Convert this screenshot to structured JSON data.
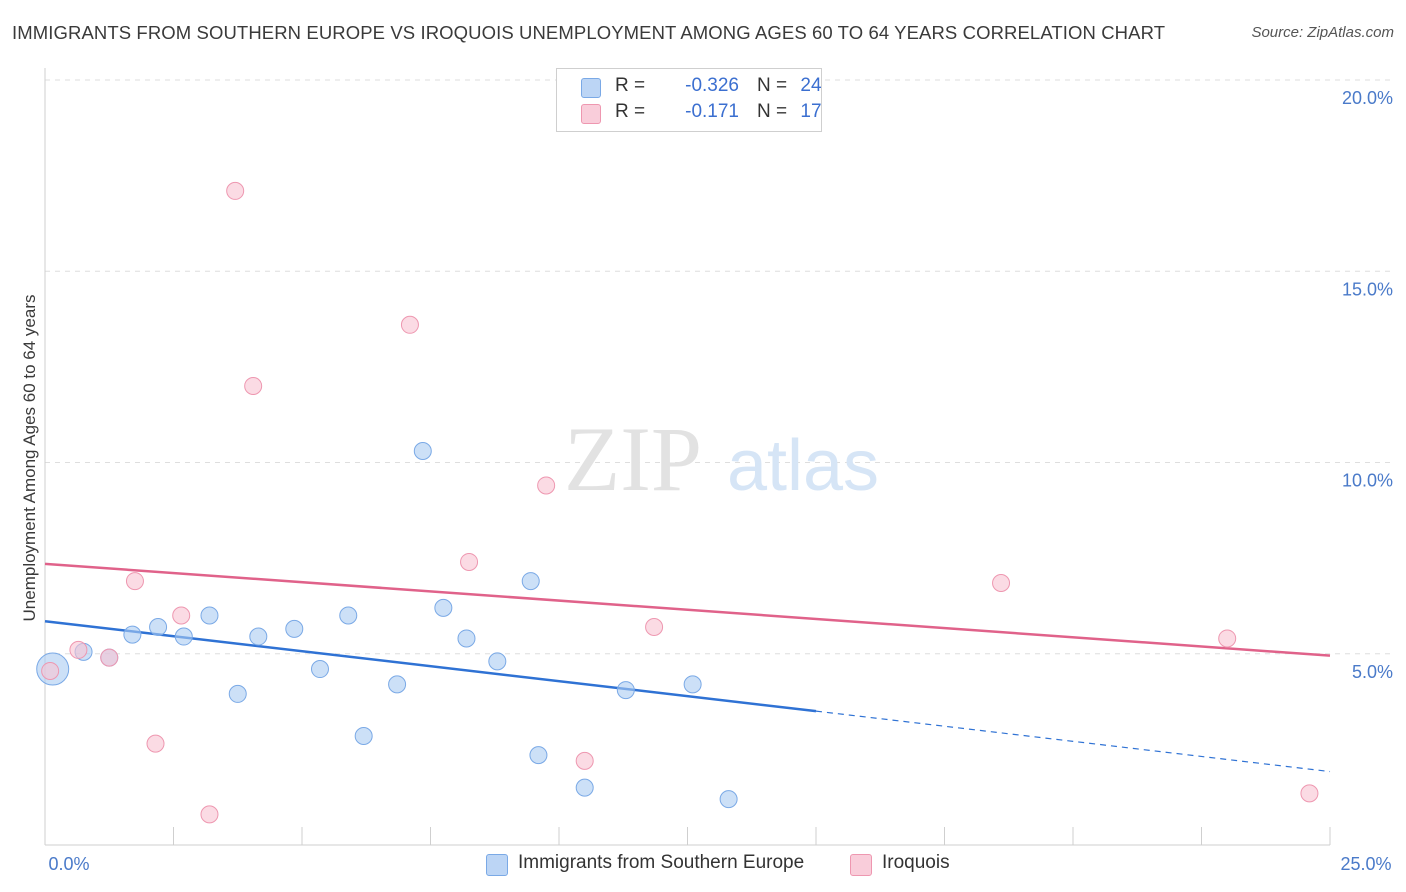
{
  "title": "IMMIGRANTS FROM SOUTHERN EUROPE VS IROQUOIS UNEMPLOYMENT AMONG AGES 60 TO 64 YEARS CORRELATION CHART",
  "source": "Source: ZipAtlas.com",
  "watermark": {
    "zip": "ZIP",
    "atlas": "atlas"
  },
  "legend": {
    "series": [
      {
        "r_label": "R =",
        "r_value": "-0.326",
        "n_label": "N =",
        "n_value": "24"
      },
      {
        "r_label": "R =",
        "r_value": "-0.171",
        "n_label": "N =",
        "n_value": "17"
      }
    ]
  },
  "bottom_legend": [
    "Immigrants from Southern Europe",
    "Iroquois"
  ],
  "chart_data": {
    "type": "scatter",
    "title": "IMMIGRANTS FROM SOUTHERN EUROPE VS IROQUOIS UNEMPLOYMENT AMONG AGES 60 TO 64 YEARS CORRELATION CHART",
    "xlabel": "",
    "ylabel": "Unemployment Among Ages 60 to 64 years",
    "xlim": [
      0,
      25
    ],
    "ylim": [
      0,
      20
    ],
    "x_tick_labels": [
      {
        "value": 0,
        "label": "0.0%"
      },
      {
        "value": 25,
        "label": "25.0%"
      }
    ],
    "y_tick_labels": [
      {
        "value": 5,
        "label": "5.0%"
      },
      {
        "value": 10,
        "label": "10.0%"
      },
      {
        "value": 15,
        "label": "15.0%"
      },
      {
        "value": 20,
        "label": "20.0%"
      }
    ],
    "grid": true,
    "series": [
      {
        "name": "Immigrants from Southern Europe",
        "color": "#aacbf2",
        "stroke": "#7aa9e6",
        "line_color": "#2f72d4",
        "r": -0.326,
        "n": 24,
        "points": [
          {
            "x": 0.15,
            "y": 4.6,
            "big": true
          },
          {
            "x": 0.75,
            "y": 5.05
          },
          {
            "x": 1.25,
            "y": 4.9
          },
          {
            "x": 1.7,
            "y": 5.5
          },
          {
            "x": 2.2,
            "y": 5.7
          },
          {
            "x": 2.7,
            "y": 5.45
          },
          {
            "x": 3.2,
            "y": 6.0
          },
          {
            "x": 3.75,
            "y": 3.95
          },
          {
            "x": 4.15,
            "y": 5.45
          },
          {
            "x": 4.85,
            "y": 5.65
          },
          {
            "x": 5.35,
            "y": 4.6
          },
          {
            "x": 5.9,
            "y": 6.0
          },
          {
            "x": 6.2,
            "y": 2.85
          },
          {
            "x": 6.85,
            "y": 4.2
          },
          {
            "x": 7.35,
            "y": 10.3
          },
          {
            "x": 7.75,
            "y": 6.2
          },
          {
            "x": 8.2,
            "y": 5.4
          },
          {
            "x": 8.8,
            "y": 4.8
          },
          {
            "x": 9.45,
            "y": 6.9
          },
          {
            "x": 9.6,
            "y": 2.35
          },
          {
            "x": 10.5,
            "y": 1.5
          },
          {
            "x": 11.3,
            "y": 4.05
          },
          {
            "x": 12.6,
            "y": 4.2
          },
          {
            "x": 13.3,
            "y": 1.2
          }
        ],
        "trend": {
          "x0": 0,
          "y0": 5.85,
          "x1": 15,
          "y1": 3.5,
          "dashed_to_x": 25,
          "dashed_to_y": 1.92
        }
      },
      {
        "name": "Iroquois",
        "color": "#f8c3d2",
        "stroke": "#ee97b0",
        "line_color": "#e0628a",
        "r": -0.171,
        "n": 17,
        "points": [
          {
            "x": 0.1,
            "y": 4.55
          },
          {
            "x": 0.65,
            "y": 5.1
          },
          {
            "x": 1.25,
            "y": 4.9
          },
          {
            "x": 1.75,
            "y": 6.9
          },
          {
            "x": 2.15,
            "y": 2.65
          },
          {
            "x": 2.65,
            "y": 6.0
          },
          {
            "x": 3.2,
            "y": 0.8
          },
          {
            "x": 3.7,
            "y": 17.1
          },
          {
            "x": 4.05,
            "y": 12.0
          },
          {
            "x": 7.1,
            "y": 13.6
          },
          {
            "x": 8.25,
            "y": 7.4
          },
          {
            "x": 9.75,
            "y": 9.4
          },
          {
            "x": 10.5,
            "y": 2.2
          },
          {
            "x": 11.85,
            "y": 5.7
          },
          {
            "x": 18.6,
            "y": 6.85
          },
          {
            "x": 23.0,
            "y": 5.4
          },
          {
            "x": 24.6,
            "y": 1.35
          }
        ],
        "trend": {
          "x0": 0,
          "y0": 7.35,
          "x1": 25,
          "y1": 4.95
        }
      }
    ]
  }
}
